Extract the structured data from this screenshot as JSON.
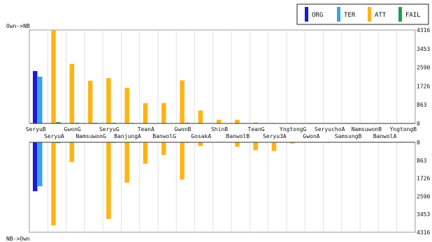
{
  "chart_data": {
    "type": "bar",
    "top_label": "Own->NB",
    "bottom_label": "NB->Own",
    "ylim": [
      0,
      4316
    ],
    "y_ticks": [
      "0",
      "863",
      "1726",
      "2590",
      "3453",
      "4316"
    ],
    "legend_position": "top-right",
    "categories": [
      "SeryuB",
      "SeryuA",
      "GwonG",
      "NamsuwonG",
      "SeryuG",
      "BanjungA",
      "TeanA",
      "BanwolG",
      "GwonB",
      "GosakA",
      "ShinB",
      "BanwolB",
      "TeanG",
      "Seryu3A",
      "YngtongG",
      "GwonA",
      "SeryuchoA",
      "SamsungB",
      "NamsuwonB",
      "BanwolA",
      "YngtongB"
    ],
    "series": [
      {
        "name": "ORG",
        "color": "#1a1adc",
        "top": [
          2420,
          0,
          0,
          0,
          0,
          0,
          0,
          0,
          0,
          0,
          0,
          0,
          0,
          0,
          0,
          0,
          0,
          0,
          0,
          0,
          0
        ],
        "bottom": [
          2350,
          0,
          0,
          0,
          0,
          0,
          0,
          0,
          0,
          0,
          0,
          0,
          0,
          0,
          0,
          0,
          0,
          0,
          0,
          0,
          0
        ]
      },
      {
        "name": "TER",
        "color": "#3aa0f0",
        "top": [
          2160,
          0,
          0,
          0,
          0,
          0,
          0,
          0,
          0,
          0,
          0,
          0,
          0,
          0,
          0,
          0,
          0,
          0,
          0,
          0,
          0
        ],
        "bottom": [
          2110,
          0,
          0,
          0,
          0,
          0,
          0,
          0,
          0,
          0,
          0,
          0,
          0,
          0,
          0,
          0,
          0,
          0,
          0,
          0,
          0
        ]
      },
      {
        "name": "ATT",
        "color": "#ffb414",
        "top": [
          0,
          4316,
          2750,
          1970,
          2100,
          1650,
          940,
          940,
          1990,
          600,
          170,
          170,
          40,
          20,
          20,
          20,
          20,
          20,
          20,
          20,
          20
        ],
        "bottom": [
          0,
          3990,
          950,
          20,
          3680,
          1940,
          1030,
          610,
          1790,
          180,
          20,
          220,
          380,
          420,
          60,
          20,
          20,
          20,
          20,
          20,
          20
        ]
      },
      {
        "name": "FAIL",
        "color": "#1aa050",
        "top": [
          10,
          60,
          30,
          30,
          30,
          25,
          15,
          15,
          30,
          10,
          5,
          5,
          0,
          0,
          0,
          0,
          0,
          0,
          0,
          0,
          0
        ],
        "bottom": [
          10,
          40,
          20,
          10,
          30,
          20,
          15,
          10,
          25,
          5,
          0,
          5,
          5,
          5,
          0,
          0,
          0,
          0,
          0,
          0,
          0
        ]
      }
    ]
  }
}
